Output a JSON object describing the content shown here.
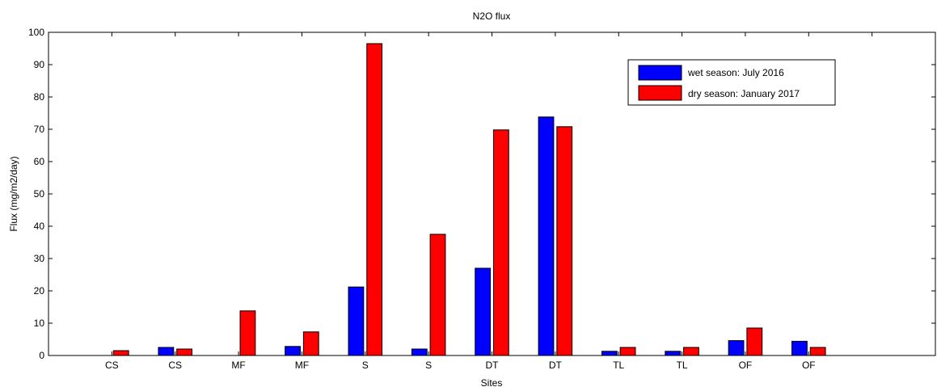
{
  "chart_data": {
    "type": "bar",
    "title": "N2O flux",
    "xlabel": "Sites",
    "ylabel": "Flux (mg/m2/day)",
    "ylim": [
      0,
      100
    ],
    "yticks": [
      0,
      10,
      20,
      30,
      40,
      50,
      60,
      70,
      80,
      90,
      100
    ],
    "categories": [
      "CS",
      "CS",
      "MF",
      "MF",
      "S",
      "S",
      "DT",
      "DT",
      "TL",
      "TL",
      "OF",
      "OF"
    ],
    "xlim": [
      0,
      14
    ],
    "legend_position": "top-right",
    "grid": false,
    "series": [
      {
        "name": "wet season: July 2016",
        "color": "#0000ff",
        "values": [
          0,
          2.5,
          0,
          2.8,
          21.2,
          2.0,
          27.0,
          73.8,
          1.3,
          1.3,
          4.6,
          4.4
        ]
      },
      {
        "name": "dry season: January 2017",
        "color": "#ff0000",
        "values": [
          1.5,
          2.0,
          13.8,
          7.3,
          96.5,
          37.5,
          69.8,
          70.8,
          2.5,
          2.5,
          8.5,
          2.5
        ]
      }
    ]
  }
}
